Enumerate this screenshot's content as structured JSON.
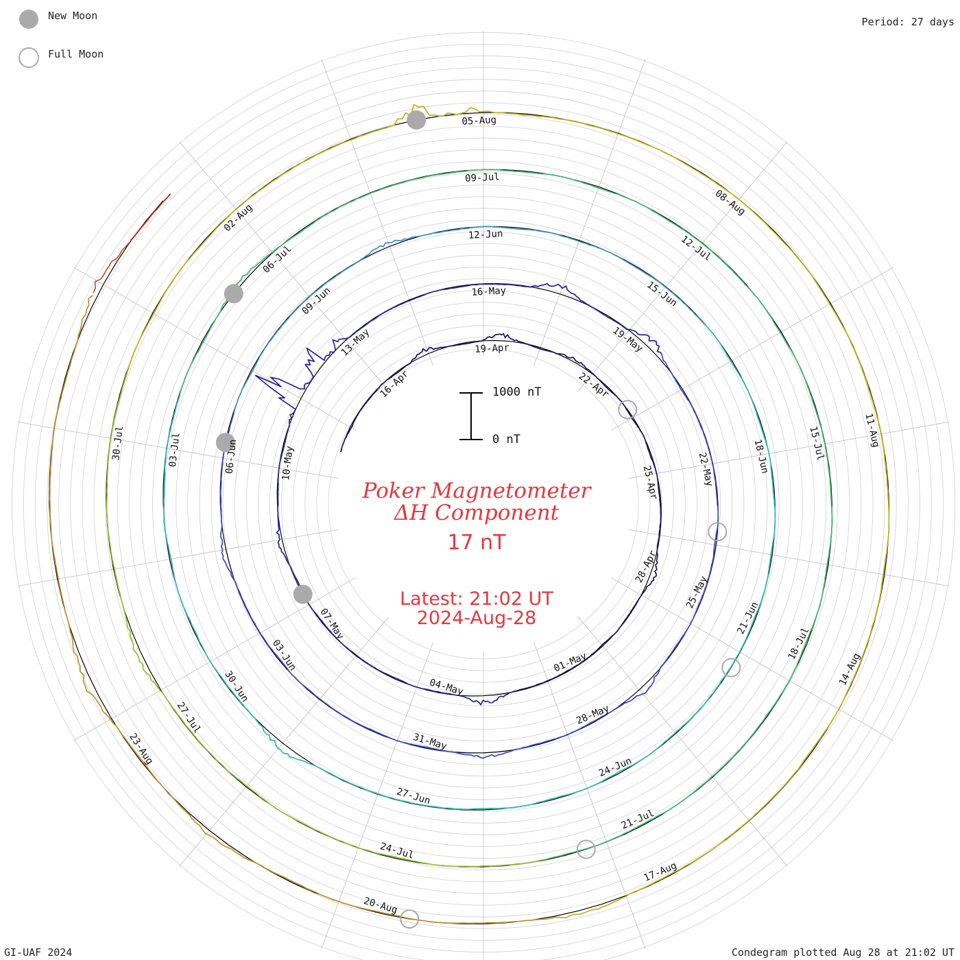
{
  "legend": {
    "new_moon": "New Moon",
    "full_moon": "Full Moon",
    "new_moon_color": "#aaaaaa",
    "full_moon_color": "#aaaaaa"
  },
  "header": {
    "period": "Period: 27 days"
  },
  "footer": {
    "credit": "GI-UAF 2024",
    "plotted": "Condegram plotted Aug 28 at 21:02 UT"
  },
  "center": {
    "title_line1": "Poker Magnetometer",
    "title_line2": "ΔH Component",
    "value": "17 nT",
    "latest": "Latest: 21:02 UT",
    "date": "2024-Aug-28",
    "text_color": "#e8363c"
  },
  "scale": {
    "top_label": "1000 nT",
    "bottom_label": "0 nT"
  },
  "chart_data": {
    "type": "line",
    "plot_kind": "condegram spiral",
    "period_days": 27,
    "scale_bar_nT": [
      0,
      1000
    ],
    "start_date": "2024-04-14",
    "end_date": "2024-08-28",
    "date_labels": [
      "16-Apr",
      "19-Apr",
      "22-Apr",
      "25-Apr",
      "28-Apr",
      "01-May",
      "04-May",
      "07-May",
      "10-May",
      "13-May",
      "16-May",
      "19-May",
      "22-May",
      "25-May",
      "28-May",
      "31-May",
      "03-Jun",
      "06-Jun",
      "09-Jun",
      "12-Jun",
      "15-Jun",
      "18-Jun",
      "21-Jun",
      "24-Jun",
      "27-Jun",
      "30-Jun",
      "03-Jul",
      "06-Jul",
      "09-Jul",
      "12-Jul",
      "15-Jul",
      "18-Jul",
      "21-Jul",
      "24-Jul",
      "27-Jul",
      "30-Jul",
      "02-Aug",
      "05-Aug",
      "08-Aug",
      "11-Aug",
      "14-Aug",
      "17-Aug",
      "20-Aug",
      "23-Aug"
    ],
    "new_moons": [
      "2024-05-07",
      "2024-06-06",
      "2024-07-05",
      "2024-08-04"
    ],
    "full_moons": [
      "2024-04-23",
      "2024-05-23",
      "2024-06-21",
      "2024-07-21",
      "2024-08-19"
    ],
    "series_colors": [
      "#1a1060",
      "#2a1e9a",
      "#3447c7",
      "#3a8fc0",
      "#2fbaa8",
      "#3fb865",
      "#8fc230",
      "#c0b21a",
      "#c0902a",
      "#c8541c",
      "#c2140e"
    ],
    "disturbances": [
      {
        "date": "2024-04-17",
        "value": 160
      },
      {
        "date": "2024-04-19",
        "value": 190
      },
      {
        "date": "2024-04-21",
        "value": 120
      },
      {
        "date": "2024-04-27",
        "value": 160
      },
      {
        "date": "2024-05-02",
        "value": 230
      },
      {
        "date": "2024-05-08",
        "value": 130
      },
      {
        "date": "2024-05-11",
        "value": 1650
      },
      {
        "date": "2024-05-12",
        "value": 780
      },
      {
        "date": "2024-05-17",
        "value": 250
      },
      {
        "date": "2024-05-19",
        "value": 230
      },
      {
        "date": "2024-05-26",
        "value": 160
      },
      {
        "date": "2024-05-29",
        "value": 140
      },
      {
        "date": "2024-06-04",
        "value": 130
      },
      {
        "date": "2024-06-10",
        "value": 120
      },
      {
        "date": "2024-06-28",
        "value": 200
      },
      {
        "date": "2024-07-05",
        "value": 140
      },
      {
        "date": "2024-07-27",
        "value": 170
      },
      {
        "date": "2024-08-04",
        "value": 520
      },
      {
        "date": "2024-08-17",
        "value": 130
      },
      {
        "date": "2024-08-21",
        "value": 150
      },
      {
        "date": "2024-08-23",
        "value": 220
      },
      {
        "date": "2024-08-27",
        "value": 220
      }
    ]
  }
}
